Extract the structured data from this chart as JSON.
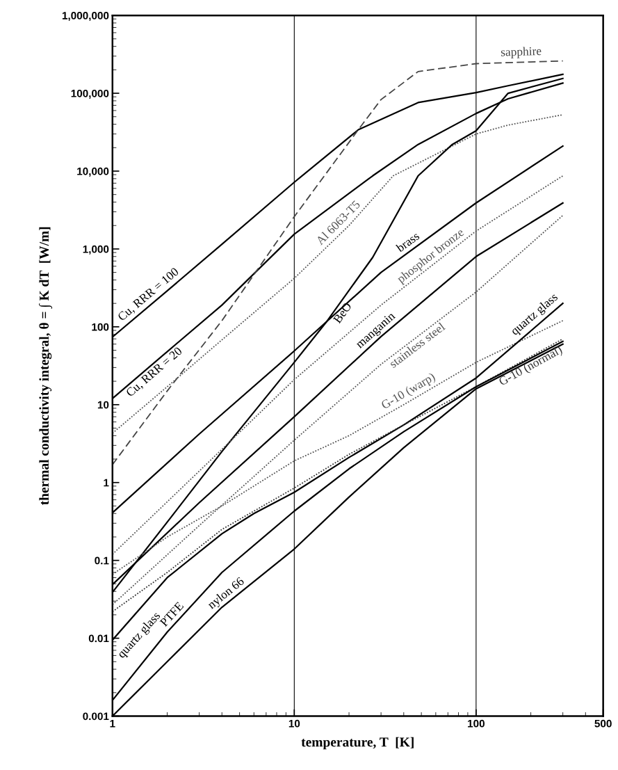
{
  "chart_data": {
    "type": "line",
    "xlabel": "temperature, T  [K]",
    "ylabel": "thermal conductivity integral, θ = ∫ K dT  [W/m]",
    "log": "xy",
    "grid": "x",
    "legend": false,
    "marker": "none",
    "xlim": [
      1,
      500
    ],
    "xticks": [
      1,
      10,
      100,
      500
    ],
    "ylim": [
      0.001,
      1000000
    ],
    "yticks": [
      0.001,
      0.01,
      0.1,
      1,
      10,
      100,
      {
        "value": 1000,
        "label": "1,000"
      },
      {
        "value": 10000,
        "label": "10,000"
      },
      {
        "value": 100000,
        "label": "100,000"
      },
      {
        "value": 1000000,
        "label": "1,000,000"
      }
    ],
    "annotations": [
      "quartz glass"
    ],
    "series": [
      {
        "name": "Cu, RRR = 100",
        "color": "#000000",
        "line_style": "solid",
        "x": [
          1,
          2,
          4,
          10,
          22.5,
          48,
          100,
          150,
          300
        ],
        "values": [
          74,
          290,
          1150,
          7200,
          34000,
          76000,
          102000,
          125000,
          175000
        ]
      },
      {
        "name": "Cu, RRR = 20",
        "color": "#000000",
        "line_style": "solid",
        "x": [
          1,
          2,
          4,
          10,
          27,
          48,
          100,
          150,
          300
        ],
        "values": [
          12,
          48,
          190,
          1550,
          8700,
          22000,
          55000,
          85000,
          135000
        ]
      },
      {
        "name": "sapphire",
        "color": "#444444",
        "line_style": "dashed",
        "x": [
          1,
          2,
          4,
          10,
          22.5,
          30,
          48,
          100,
          300
        ],
        "values": [
          1.7,
          15,
          120,
          2600,
          34000,
          83000,
          190000,
          240000,
          260000
        ]
      },
      {
        "name": "Al 6063-T5",
        "color": "#555555",
        "line_style": "dotted",
        "x": [
          1,
          2,
          4,
          10,
          20,
          35,
          100,
          150,
          300
        ],
        "values": [
          4.3,
          17,
          68,
          420,
          2000,
          8700,
          30000,
          39000,
          53000
        ]
      },
      {
        "name": "BeO",
        "color": "#000000",
        "line_style": "solid",
        "x": [
          1,
          2,
          4,
          10,
          15,
          27,
          48,
          74,
          100,
          150,
          300
        ],
        "values": [
          0.039,
          0.31,
          2.5,
          35,
          115,
          780,
          8700,
          22000,
          33000,
          100000,
          155000
        ]
      },
      {
        "name": "brass",
        "color": "#000000",
        "line_style": "solid",
        "x": [
          1,
          3,
          10,
          30,
          100,
          300
        ],
        "values": [
          0.41,
          4.2,
          49,
          500,
          3900,
          21000
        ]
      },
      {
        "name": "phosphor bronze",
        "color": "#555555",
        "line_style": "dotted",
        "x": [
          1,
          3,
          10,
          30,
          100,
          300
        ],
        "values": [
          0.12,
          1.4,
          21,
          190,
          1700,
          8700
        ]
      },
      {
        "name": "manganin",
        "color": "#000000",
        "line_style": "solid",
        "x": [
          1,
          3,
          10,
          30,
          100,
          300
        ],
        "values": [
          0.049,
          0.55,
          7,
          75,
          800,
          3900
        ]
      },
      {
        "name": "stainless steel",
        "color": "#555555",
        "line_style": "dotted",
        "x": [
          1,
          3,
          10,
          30,
          100,
          300
        ],
        "values": [
          0.027,
          0.28,
          3.5,
          33,
          280,
          2700
        ]
      },
      {
        "name": "G-10 (warp)",
        "color": "#555555",
        "line_style": "dotted",
        "x": [
          1,
          2,
          4,
          10,
          20,
          40,
          100,
          300
        ],
        "values": [
          0.066,
          0.2,
          0.5,
          1.9,
          4,
          10,
          35,
          120
        ]
      },
      {
        "name": "quartz glass",
        "color": "#000000",
        "line_style": "solid",
        "x": [
          1,
          2,
          4,
          6,
          10,
          20,
          40,
          100,
          300
        ],
        "values": [
          0.0095,
          0.06,
          0.22,
          0.4,
          0.75,
          2.1,
          5.5,
          22,
          200
        ]
      },
      {
        "name": "G-10 (normal)",
        "color": "#333333",
        "line_style": "dotted",
        "x": [
          1,
          2,
          4,
          10,
          20,
          40,
          100,
          300
        ],
        "values": [
          0.022,
          0.07,
          0.25,
          0.85,
          2.3,
          5.5,
          17,
          70
        ]
      },
      {
        "name": "PTFE",
        "color": "#000000",
        "line_style": "solid",
        "x": [
          1,
          2,
          4,
          10,
          20,
          40,
          100,
          300
        ],
        "values": [
          0.0016,
          0.012,
          0.07,
          0.43,
          1.5,
          4.5,
          17,
          65
        ]
      },
      {
        "name": "nylon 66",
        "color": "#000000",
        "line_style": "solid",
        "x": [
          1,
          2,
          4,
          10,
          20,
          40,
          100,
          300
        ],
        "values": [
          0.001,
          0.005,
          0.025,
          0.14,
          0.65,
          2.8,
          16,
          60
        ]
      }
    ]
  }
}
